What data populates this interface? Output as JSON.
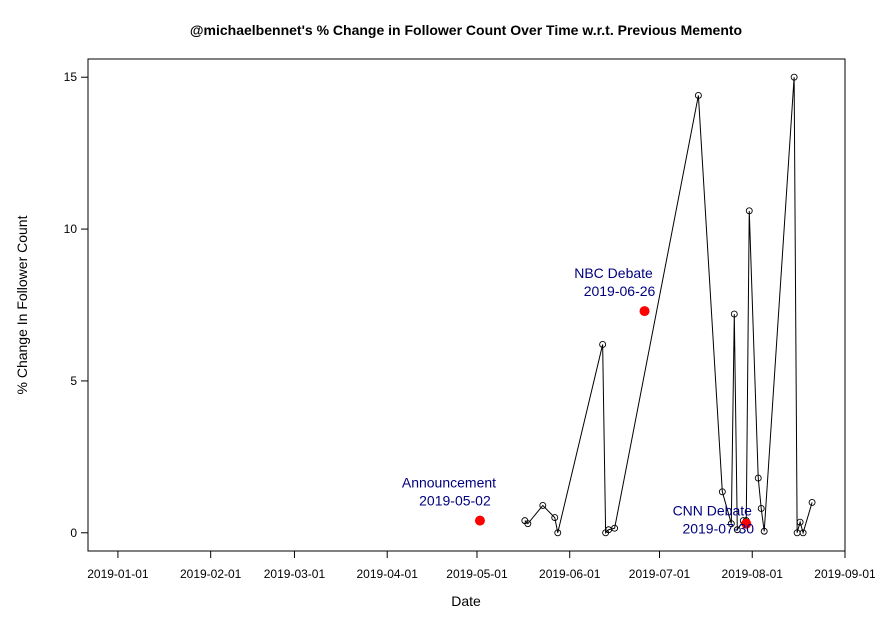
{
  "chart_data": {
    "type": "line",
    "title": "@michaelbennet's % Change in Follower Count Over Time w.r.t. Previous Memento",
    "xlabel": "Date",
    "ylabel": "% Change In Follower Count",
    "xlim": [
      "2018-12-22",
      "2019-09-01"
    ],
    "ylim": [
      -0.6,
      15.6
    ],
    "x_ticks": [
      "2019-01-01",
      "2019-02-01",
      "2019-03-01",
      "2019-04-01",
      "2019-05-01",
      "2019-06-01",
      "2019-07-01",
      "2019-08-01",
      "2019-09-01"
    ],
    "y_ticks": [
      0,
      5,
      10,
      15
    ],
    "grid": false,
    "series": [
      {
        "line_color": "#000000",
        "marker": "open-circle",
        "x": [
          "2019-05-17",
          "2019-05-18",
          "2019-05-23",
          "2019-05-27",
          "2019-05-28",
          "2019-06-12",
          "2019-06-13",
          "2019-06-14",
          "2019-06-16",
          "2019-07-14",
          "2019-07-22",
          "2019-07-25",
          "2019-07-26",
          "2019-07-27",
          "2019-07-29",
          "2019-07-30",
          "2019-07-31",
          "2019-08-03",
          "2019-08-04",
          "2019-08-05",
          "2019-08-15",
          "2019-08-16",
          "2019-08-17",
          "2019-08-18",
          "2019-08-21"
        ],
        "y": [
          0.4,
          0.3,
          0.9,
          0.5,
          0.0,
          6.2,
          0.0,
          0.1,
          0.15,
          14.4,
          1.35,
          0.3,
          7.2,
          0.1,
          0.4,
          0.4,
          10.6,
          1.8,
          0.8,
          0.05,
          15.0,
          0.0,
          0.35,
          0.0,
          1.0
        ]
      }
    ],
    "events": [
      {
        "label": "Announcement",
        "date": "2019-05-02",
        "x": "2019-05-02",
        "y": 0.4,
        "color": "#ff0000"
      },
      {
        "label": "NBC Debate",
        "date": "2019-06-26",
        "x": "2019-06-26",
        "y": 7.3,
        "color": "#ff0000"
      },
      {
        "label": "CNN Debate",
        "date": "2019-07-30",
        "x": "2019-07-30",
        "y": 0.3,
        "color": "#ff0000"
      }
    ],
    "annotation_color": "#00007f"
  }
}
